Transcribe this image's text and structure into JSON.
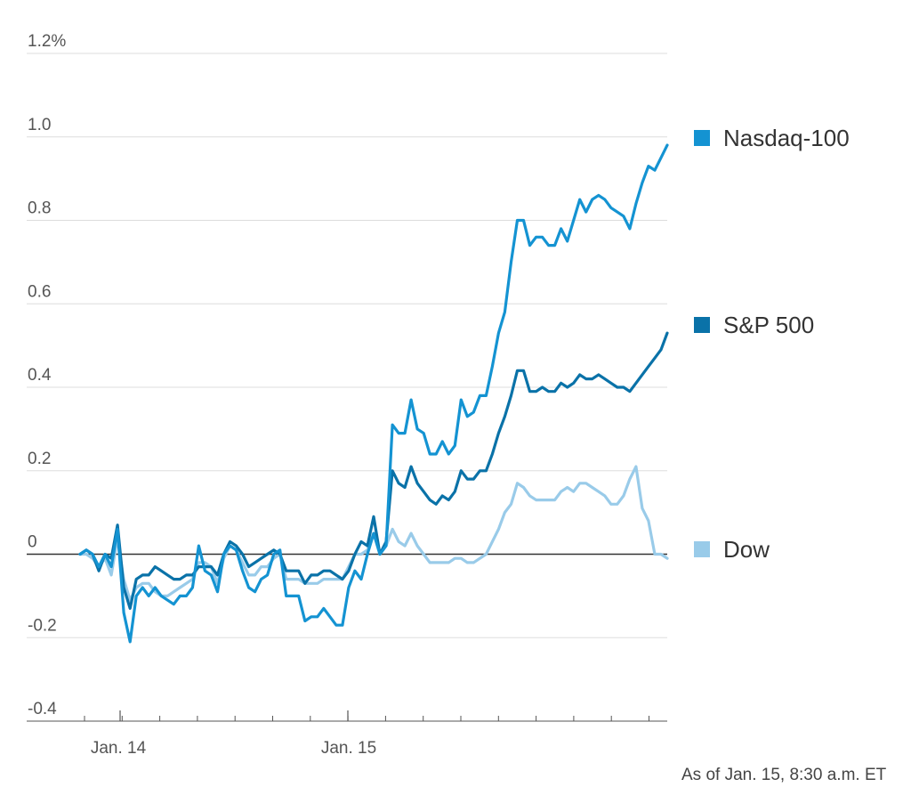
{
  "chart_data": {
    "type": "line",
    "title": "",
    "xlabel": "",
    "ylabel": "",
    "ylim": [
      -0.4,
      1.2
    ],
    "y_ticks": [
      {
        "value": 1.2,
        "label": "1.2%"
      },
      {
        "value": 1.0,
        "label": "1.0"
      },
      {
        "value": 0.8,
        "label": "0.8"
      },
      {
        "value": 0.6,
        "label": "0.6"
      },
      {
        "value": 0.4,
        "label": "0.4"
      },
      {
        "value": 0.2,
        "label": "0.2"
      },
      {
        "value": 0,
        "label": "0"
      },
      {
        "value": -0.2,
        "label": "-0.2"
      },
      {
        "value": -0.4,
        "label": "-0.4"
      }
    ],
    "x_tick_labels": [
      "Jan. 14",
      "Jan. 15"
    ],
    "grid": true,
    "legend_placement": "right",
    "footnote": "As of Jan. 15, 8:30 a.m. ET",
    "series": [
      {
        "name": "Nasdaq-100",
        "color": "#1493d2",
        "values": [
          0,
          0.01,
          0,
          -0.03,
          0,
          -0.03,
          0.06,
          -0.14,
          -0.21,
          -0.1,
          -0.08,
          -0.1,
          -0.08,
          -0.1,
          -0.11,
          -0.12,
          -0.1,
          -0.1,
          -0.08,
          0.02,
          -0.04,
          -0.05,
          -0.09,
          0,
          0.02,
          0.01,
          -0.04,
          -0.08,
          -0.09,
          -0.06,
          -0.05,
          0,
          0.01,
          -0.1,
          -0.1,
          -0.1,
          -0.16,
          -0.15,
          -0.15,
          -0.13,
          -0.15,
          -0.17,
          -0.17,
          -0.08,
          -0.04,
          -0.06,
          0,
          0.05,
          0,
          0.02,
          0.31,
          0.29,
          0.29,
          0.37,
          0.3,
          0.29,
          0.24,
          0.24,
          0.27,
          0.24,
          0.26,
          0.37,
          0.33,
          0.34,
          0.38,
          0.38,
          0.45,
          0.53,
          0.58,
          0.7,
          0.8,
          0.8,
          0.74,
          0.76,
          0.76,
          0.74,
          0.74,
          0.78,
          0.75,
          0.8,
          0.85,
          0.82,
          0.85,
          0.86,
          0.85,
          0.83,
          0.82,
          0.81,
          0.78,
          0.84,
          0.89,
          0.93,
          0.92,
          0.95,
          0.98
        ]
      },
      {
        "name": "S&P 500",
        "color": "#0a72a8",
        "values": [
          0,
          0.01,
          0,
          -0.04,
          0,
          -0.01,
          0.07,
          -0.08,
          -0.13,
          -0.06,
          -0.05,
          -0.05,
          -0.03,
          -0.04,
          -0.05,
          -0.06,
          -0.06,
          -0.05,
          -0.05,
          -0.03,
          -0.03,
          -0.03,
          -0.05,
          0,
          0.03,
          0.02,
          0,
          -0.03,
          -0.02,
          -0.01,
          0,
          0.01,
          0,
          -0.04,
          -0.04,
          -0.04,
          -0.07,
          -0.05,
          -0.05,
          -0.04,
          -0.04,
          -0.05,
          -0.06,
          -0.04,
          0,
          0.03,
          0.02,
          0.09,
          0,
          0.03,
          0.2,
          0.17,
          0.16,
          0.21,
          0.17,
          0.15,
          0.13,
          0.12,
          0.14,
          0.13,
          0.15,
          0.2,
          0.18,
          0.18,
          0.2,
          0.2,
          0.24,
          0.29,
          0.33,
          0.38,
          0.44,
          0.44,
          0.39,
          0.39,
          0.4,
          0.39,
          0.39,
          0.41,
          0.4,
          0.41,
          0.43,
          0.42,
          0.42,
          0.43,
          0.42,
          0.41,
          0.4,
          0.4,
          0.39,
          0.41,
          0.43,
          0.45,
          0.47,
          0.49,
          0.53
        ]
      },
      {
        "name": "Dow",
        "color": "#99cbe9",
        "values": [
          0,
          0,
          -0.01,
          -0.03,
          -0.01,
          -0.05,
          0.04,
          -0.06,
          -0.11,
          -0.08,
          -0.07,
          -0.07,
          -0.09,
          -0.1,
          -0.1,
          -0.09,
          -0.08,
          -0.07,
          -0.06,
          -0.02,
          -0.02,
          -0.03,
          -0.07,
          -0.01,
          0.02,
          0.01,
          -0.02,
          -0.05,
          -0.05,
          -0.03,
          -0.03,
          -0.01,
          0,
          -0.06,
          -0.06,
          -0.06,
          -0.07,
          -0.07,
          -0.07,
          -0.06,
          -0.06,
          -0.06,
          -0.06,
          -0.03,
          0,
          0,
          0.01,
          0.05,
          0,
          0.02,
          0.06,
          0.03,
          0.02,
          0.05,
          0.02,
          0,
          -0.02,
          -0.02,
          -0.02,
          -0.02,
          -0.01,
          -0.01,
          -0.02,
          -0.02,
          -0.01,
          0,
          0.03,
          0.06,
          0.1,
          0.12,
          0.17,
          0.16,
          0.14,
          0.13,
          0.13,
          0.13,
          0.13,
          0.15,
          0.16,
          0.15,
          0.17,
          0.17,
          0.16,
          0.15,
          0.14,
          0.12,
          0.12,
          0.14,
          0.18,
          0.21,
          0.11,
          0.08,
          0,
          0,
          -0.01
        ]
      }
    ]
  }
}
